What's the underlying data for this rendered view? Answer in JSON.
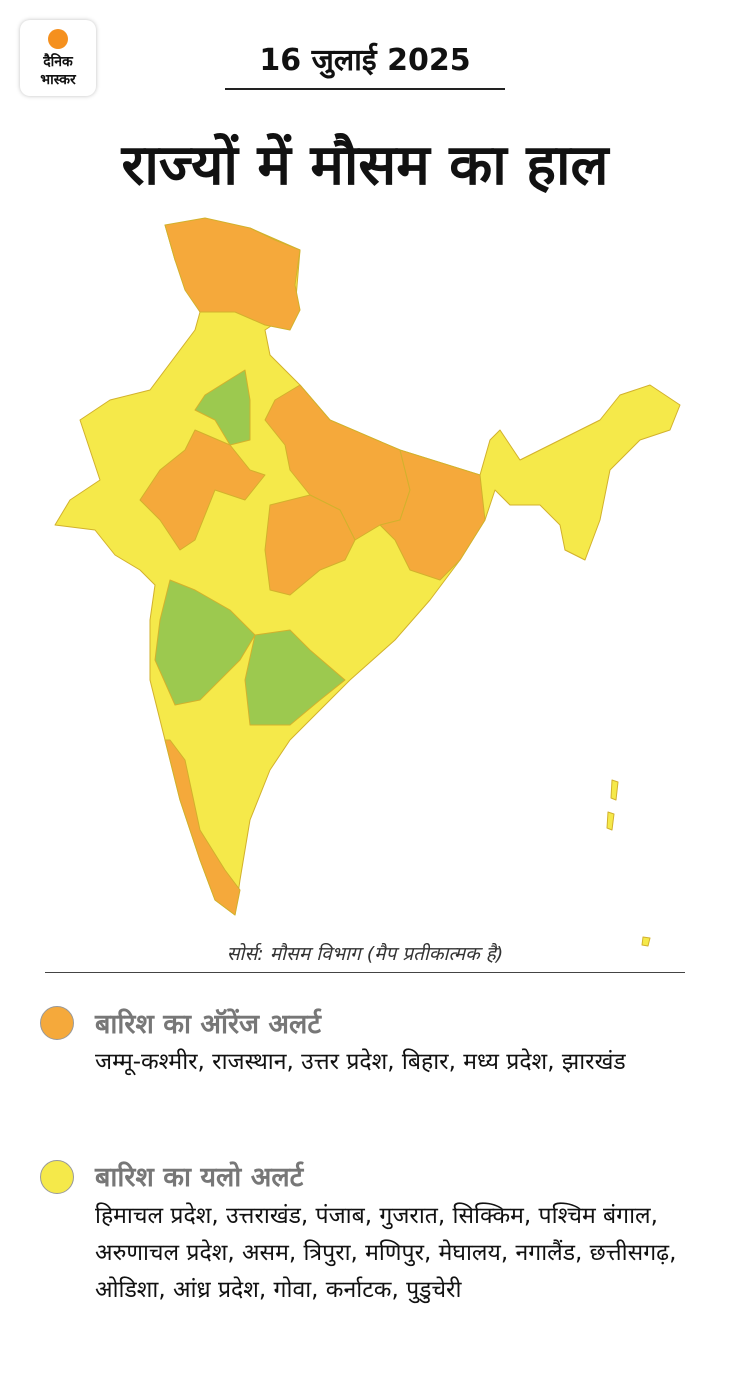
{
  "header": {
    "logo": [
      "दैनिक",
      "भास्कर"
    ],
    "date": "16 जुलाई 2025",
    "title": "राज्यों में मौसम का हाल"
  },
  "map": {
    "source": "सोर्स: मौसम विभाग (मैप प्रतीकात्मक है)"
  },
  "legend": [
    {
      "title": "बारिश का ऑरेंज अलर्ट",
      "states": "जम्मू-कश्मीर, राजस्थान, उत्तर प्रदेश, बिहार, मध्य प्रदेश, झारखंड"
    },
    {
      "title": "बारिश का यलो अलर्ट",
      "states": "हिमाचल प्रदेश, उत्तराखंड, पंजाब, गुजरात, सिक्किम, पश्चिम बंगाल, अरुणाचल प्रदेश, असम, त्रिपुरा, मणिपुर, मेघालय, नगालैंड, छत्तीसगढ़, ओडिशा, आंध्र प्रदेश, गोवा, कर्नाटक, पुडुचेरी"
    }
  ]
}
